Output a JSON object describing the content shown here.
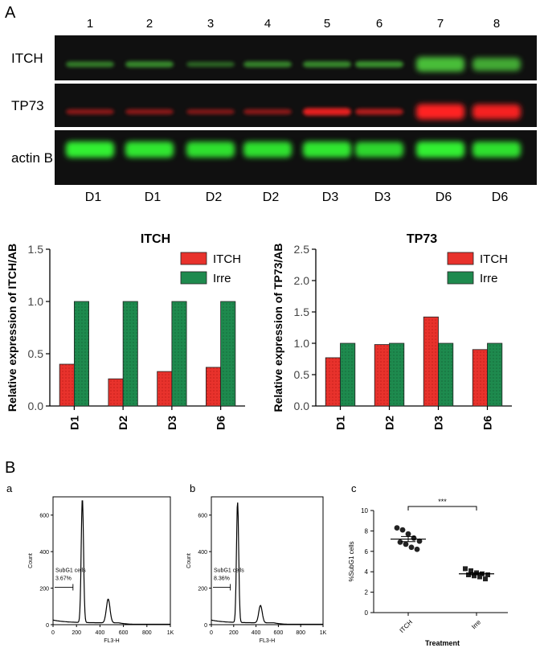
{
  "panel_a": {
    "label": "A",
    "lane_numbers": [
      "1",
      "2",
      "3",
      "4",
      "5",
      "6",
      "7",
      "8"
    ],
    "lane_days": [
      "D1",
      "D1",
      "D2",
      "D2",
      "D3",
      "D3",
      "D6",
      "D6"
    ],
    "rows": [
      {
        "name": "ITCH",
        "color": "#4cc53a",
        "intensity": [
          0.45,
          0.55,
          0.3,
          0.5,
          0.55,
          0.6,
          0.95,
          0.8
        ]
      },
      {
        "name": "TP73",
        "color": "#ff2020",
        "intensity": [
          0.35,
          0.35,
          0.3,
          0.35,
          0.85,
          0.55,
          1.0,
          0.95
        ]
      },
      {
        "name": "actin B",
        "color": "#30f030",
        "intensity": [
          1.0,
          0.95,
          0.9,
          0.9,
          0.95,
          0.85,
          1.0,
          0.9
        ]
      }
    ]
  },
  "panel_b": {
    "label": "B",
    "sub_a": "a",
    "sub_b": "b",
    "sub_c": "c"
  },
  "chart_data": [
    {
      "type": "bar",
      "title": "ITCH",
      "ylabel": "Relative expression of ITCH/AB",
      "categories": [
        "D1",
        "D2",
        "D3",
        "D6"
      ],
      "ylim": [
        0,
        1.5
      ],
      "yticks": [
        "0.0",
        "0.5",
        "1.0",
        "1.5"
      ],
      "legend_position": "top-right",
      "series": [
        {
          "name": "ITCH",
          "color": "#e8322c",
          "values": [
            0.4,
            0.26,
            0.33,
            0.37
          ]
        },
        {
          "name": "Irre",
          "color": "#1e8a4e",
          "values": [
            1.0,
            1.0,
            1.0,
            1.0
          ]
        }
      ]
    },
    {
      "type": "bar",
      "title": "TP73",
      "ylabel": "Relative expression of TP73/AB",
      "categories": [
        "D1",
        "D2",
        "D3",
        "D6"
      ],
      "ylim": [
        0,
        2.5
      ],
      "yticks": [
        "0.0",
        "0.5",
        "1.0",
        "1.5",
        "2.0",
        "2.5"
      ],
      "legend_position": "top-right",
      "series": [
        {
          "name": "ITCH",
          "color": "#e8322c",
          "values": [
            0.77,
            0.98,
            1.42,
            0.9
          ]
        },
        {
          "name": "Irre",
          "color": "#1e8a4e",
          "values": [
            1.0,
            1.0,
            1.0,
            1.0
          ]
        }
      ]
    },
    {
      "type": "histogram",
      "panel": "a",
      "xlabel": "FL3-H",
      "ylabel": "Count",
      "xticks": [
        "0",
        "200",
        "400",
        "600",
        "800",
        "1K"
      ],
      "yticks": [
        "0",
        "200",
        "400",
        "600"
      ],
      "xlim": [
        0,
        1000
      ],
      "ylim": [
        0,
        700
      ],
      "gate_label": "SubG1 cells",
      "gate_value": "3.67%",
      "gate_range": [
        0,
        170
      ],
      "peaks": [
        {
          "x": 250,
          "count": 680
        },
        {
          "x": 470,
          "count": 130
        }
      ]
    },
    {
      "type": "histogram",
      "panel": "b",
      "xlabel": "FL3-H",
      "ylabel": "Count",
      "xticks": [
        "0",
        "200",
        "400",
        "600",
        "800",
        "1K"
      ],
      "yticks": [
        "0",
        "200",
        "400",
        "600"
      ],
      "xlim": [
        0,
        1000
      ],
      "ylim": [
        0,
        700
      ],
      "gate_label": "SubG1 cells",
      "gate_value": "8.36%",
      "gate_range": [
        0,
        170
      ],
      "peaks": [
        {
          "x": 235,
          "count": 660
        },
        {
          "x": 440,
          "count": 95
        }
      ]
    },
    {
      "type": "scatter",
      "panel": "c",
      "xlabel": "Treatment",
      "ylabel": "%SubG1 cells",
      "categories": [
        "ITCH",
        "Irre"
      ],
      "ylim": [
        0,
        10
      ],
      "yticks": [
        "0",
        "2",
        "4",
        "6",
        "8",
        "10"
      ],
      "significance": "***",
      "series": [
        {
          "name": "ITCH",
          "marker": "circle",
          "values": [
            8.3,
            8.1,
            7.7,
            7.3,
            7.0,
            6.9,
            6.7,
            6.4,
            6.2
          ],
          "mean": 7.2,
          "sem": 0.25
        },
        {
          "name": "Irre",
          "marker": "square",
          "values": [
            4.3,
            4.1,
            3.9,
            3.8,
            3.7,
            3.7,
            3.6,
            3.5,
            3.3
          ],
          "mean": 3.8,
          "sem": 0.1
        }
      ]
    }
  ]
}
